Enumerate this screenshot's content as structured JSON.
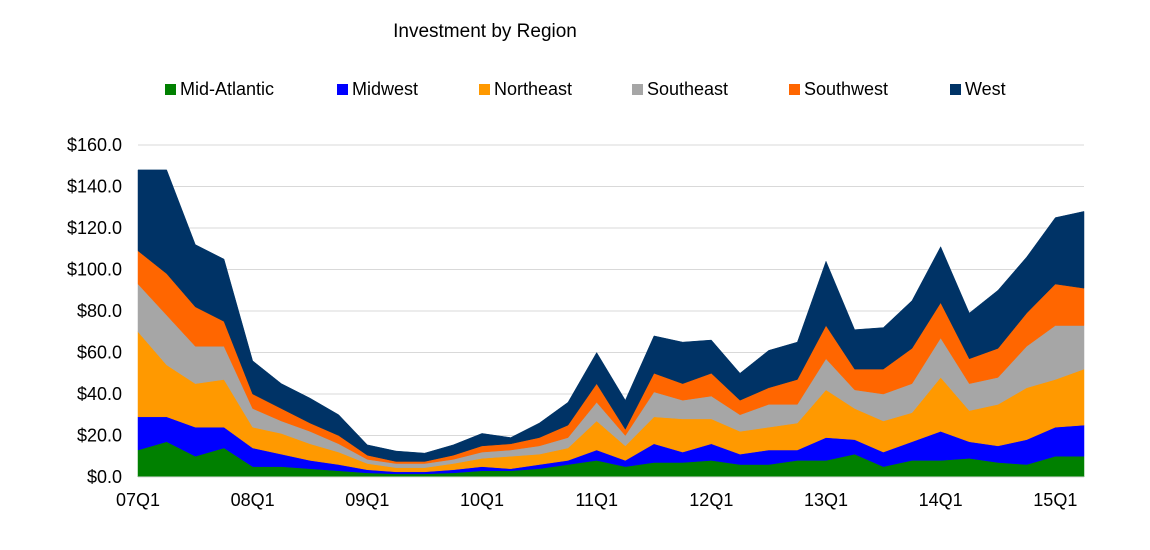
{
  "chart_data": {
    "type": "area",
    "stacked": true,
    "title": "Investment by Region",
    "xlabel": "",
    "ylabel": "",
    "ylim": [
      0,
      160
    ],
    "y_ticks": [
      "$0.0",
      "$20.0",
      "$40.0",
      "$60.0",
      "$80.0",
      "$100.0",
      "$120.0",
      "$140.0",
      "$160.0"
    ],
    "y_tick_values": [
      0,
      20,
      40,
      60,
      80,
      100,
      120,
      140,
      160
    ],
    "x_tick_labels": [
      "07Q1",
      "08Q1",
      "09Q1",
      "10Q1",
      "11Q1",
      "12Q1",
      "13Q1",
      "14Q1",
      "15Q1"
    ],
    "grid": "horizontal",
    "legend_position": "top",
    "x": [
      "07Q1",
      "07Q2",
      "07Q3",
      "07Q4",
      "08Q1",
      "08Q2",
      "08Q3",
      "08Q4",
      "09Q1",
      "09Q2",
      "09Q3",
      "09Q4",
      "10Q1",
      "10Q2",
      "10Q3",
      "10Q4",
      "11Q1",
      "11Q2",
      "11Q3",
      "11Q4",
      "12Q1",
      "12Q2",
      "12Q3",
      "12Q4",
      "13Q1",
      "13Q2",
      "13Q3",
      "13Q4",
      "14Q1",
      "14Q2",
      "14Q3",
      "14Q4",
      "15Q1",
      "15Q2"
    ],
    "series": [
      {
        "name": "Mid-Atlantic",
        "color": "#008000",
        "values": [
          13,
          17,
          10,
          14,
          5,
          5,
          4,
          3,
          2,
          1.5,
          1.5,
          2,
          3,
          3,
          4,
          6,
          8,
          5,
          7,
          7,
          8,
          6,
          6,
          8,
          8,
          11,
          5,
          8,
          8,
          9,
          7,
          6,
          10,
          10
        ]
      },
      {
        "name": "Midwest",
        "color": "#0000FF",
        "values": [
          16,
          12,
          14,
          10,
          9,
          6,
          4,
          3,
          1.5,
          1,
          1,
          1.5,
          2,
          1,
          2,
          2,
          5,
          3,
          9,
          5,
          8,
          5,
          7,
          5,
          11,
          7,
          7,
          9,
          14,
          8,
          8,
          12,
          14,
          15
        ]
      },
      {
        "name": "Northeast",
        "color": "#FF9900",
        "values": [
          41,
          25,
          21,
          23,
          10,
          10,
          8,
          6,
          3,
          2,
          2,
          3,
          4,
          6,
          5,
          6,
          14,
          7,
          13,
          16,
          12,
          11,
          11,
          13,
          23,
          15,
          15,
          14,
          26,
          15,
          20,
          25,
          23,
          27
        ]
      },
      {
        "name": "Southeast",
        "color": "#A6A6A6",
        "values": [
          23,
          24,
          18,
          16,
          9,
          6,
          6,
          4,
          2,
          2,
          2,
          2,
          3,
          3,
          4,
          5,
          9,
          5,
          12,
          9,
          11,
          8,
          11,
          9,
          15,
          9,
          13,
          14,
          19,
          13,
          13,
          20,
          26,
          21
        ]
      },
      {
        "name": "Southwest",
        "color": "#FF6600",
        "values": [
          16,
          20,
          19,
          12,
          7,
          6,
          4,
          4,
          2,
          1,
          1,
          2,
          3,
          3,
          4,
          6,
          9,
          3,
          9,
          8,
          11,
          7,
          8,
          12,
          16,
          10,
          12,
          17,
          17,
          12,
          14,
          16,
          20,
          18
        ]
      },
      {
        "name": "West",
        "color": "#003366",
        "values": [
          39,
          50,
          30,
          30,
          16,
          12,
          12,
          10,
          5,
          5,
          4,
          5,
          6,
          3,
          7,
          11,
          15,
          14,
          18,
          20,
          16,
          13,
          18,
          18,
          31,
          19,
          20,
          23,
          27,
          22,
          28,
          27,
          32,
          37
        ]
      }
    ]
  }
}
